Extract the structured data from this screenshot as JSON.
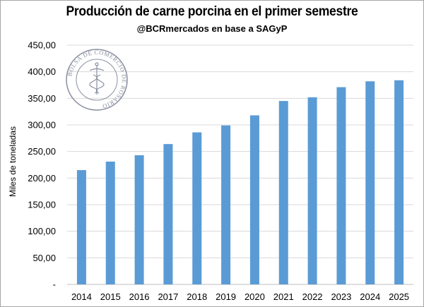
{
  "chart_data": {
    "type": "bar",
    "title": "Producción de carne porcina en el primer semestre",
    "subtitle": "@BCRmercados en base a SAGyP",
    "xlabel": "",
    "ylabel": "Miles de toneladas",
    "categories": [
      "2014",
      "2015",
      "2016",
      "2017",
      "2018",
      "2019",
      "2020",
      "2021",
      "2022",
      "2023",
      "2024",
      "2025"
    ],
    "values": [
      215,
      231,
      243,
      264,
      286,
      299,
      318,
      345,
      352,
      371,
      382,
      384
    ],
    "ylim": [
      0,
      450
    ],
    "yticks": [
      0,
      50,
      100,
      150,
      200,
      250,
      300,
      350,
      400,
      450
    ],
    "ytick_labels": [
      "-",
      "50,00",
      "100,00",
      "150,00",
      "200,00",
      "250,00",
      "300,00",
      "350,00",
      "400,00",
      "450,00"
    ],
    "grid": true,
    "legend": "none",
    "bar_color": "#5b9bd5",
    "grid_color": "#d9d9d9"
  },
  "watermark": {
    "text": "BOLSA DE COMERCIO DE ROSARIO",
    "color": "#8a8fa0"
  }
}
